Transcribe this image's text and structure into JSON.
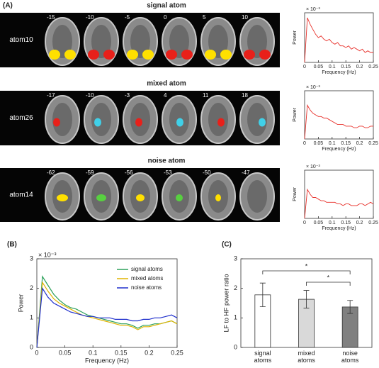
{
  "panel_a": {
    "label": "(A)",
    "rows": [
      {
        "title": "signal atom",
        "atom": "atom10",
        "slices": [
          -15,
          -10,
          -5,
          0,
          5,
          10
        ]
      },
      {
        "title": "mixed atom",
        "atom": "atom26",
        "slices": [
          -17,
          -10,
          -3,
          4,
          11,
          18
        ]
      },
      {
        "title": "noise atom",
        "atom": "atom14",
        "slices": [
          -62,
          -59,
          -56,
          -53,
          -50,
          -47
        ]
      }
    ]
  },
  "chart_data": [
    {
      "type": "line",
      "ylabel": "Power",
      "xlabel": "Frequency (Hz)",
      "exponent": "× 10⁻³",
      "color": "#e8302a",
      "x": [
        0,
        0.01,
        0.02,
        0.03,
        0.04,
        0.05,
        0.06,
        0.07,
        0.08,
        0.09,
        0.1,
        0.11,
        0.12,
        0.13,
        0.14,
        0.15,
        0.16,
        0.17,
        0.18,
        0.19,
        0.2,
        0.21,
        0.22,
        0.23,
        0.24,
        0.25
      ],
      "values": [
        0,
        2.7,
        2.3,
        2.0,
        1.7,
        1.5,
        1.6,
        1.4,
        1.3,
        1.4,
        1.2,
        1.1,
        1.2,
        1.0,
        1.0,
        0.9,
        1.0,
        0.8,
        0.9,
        0.8,
        0.7,
        0.8,
        0.6,
        0.7,
        0.6,
        0.6
      ],
      "xlim": [
        0,
        0.25
      ],
      "xticks": [
        0,
        0.05,
        0.1,
        0.15,
        0.2,
        0.25
      ],
      "ylim": [
        0,
        3
      ]
    },
    {
      "type": "line",
      "ylabel": "Power",
      "xlabel": "Frequency (Hz)",
      "exponent": "× 10⁻³",
      "color": "#e8302a",
      "x": [
        0,
        0.01,
        0.02,
        0.03,
        0.04,
        0.05,
        0.06,
        0.07,
        0.08,
        0.09,
        0.1,
        0.11,
        0.12,
        0.13,
        0.14,
        0.15,
        0.16,
        0.17,
        0.18,
        0.19,
        0.2,
        0.21,
        0.22,
        0.23,
        0.24,
        0.25
      ],
      "values": [
        0,
        2.1,
        1.8,
        1.6,
        1.5,
        1.4,
        1.4,
        1.3,
        1.3,
        1.2,
        1.1,
        1.0,
        0.9,
        0.9,
        0.9,
        0.8,
        0.8,
        0.8,
        0.7,
        0.7,
        0.8,
        0.8,
        0.7,
        0.7,
        0.8,
        0.8
      ],
      "xlim": [
        0,
        0.25
      ],
      "xticks": [
        0,
        0.05,
        0.1,
        0.15,
        0.2,
        0.25
      ],
      "ylim": [
        0,
        3
      ]
    },
    {
      "type": "line",
      "ylabel": "Power",
      "xlabel": "Frequency (Hz)",
      "exponent": "× 10⁻³",
      "color": "#e8302a",
      "x": [
        0,
        0.01,
        0.02,
        0.03,
        0.04,
        0.05,
        0.06,
        0.07,
        0.08,
        0.09,
        0.1,
        0.11,
        0.12,
        0.13,
        0.14,
        0.15,
        0.16,
        0.17,
        0.18,
        0.19,
        0.2,
        0.21,
        0.22,
        0.23,
        0.24,
        0.25
      ],
      "values": [
        0,
        1.8,
        1.5,
        1.3,
        1.3,
        1.2,
        1.1,
        1.1,
        1.0,
        1.0,
        1.0,
        1.0,
        0.9,
        0.9,
        0.8,
        0.9,
        0.9,
        0.8,
        0.8,
        0.8,
        0.9,
        0.9,
        0.8,
        0.9,
        1.0,
        0.9
      ],
      "xlim": [
        0,
        0.25
      ],
      "xticks": [
        0,
        0.05,
        0.1,
        0.15,
        0.2,
        0.25
      ],
      "ylim": [
        0,
        3
      ]
    },
    {
      "type": "line",
      "panel": "(B)",
      "ylabel": "Power",
      "xlabel": "Frequency (Hz)",
      "exponent": "× 10⁻³",
      "legend": "upper right",
      "x": [
        0,
        0.01,
        0.02,
        0.03,
        0.04,
        0.05,
        0.06,
        0.07,
        0.08,
        0.09,
        0.1,
        0.11,
        0.12,
        0.13,
        0.14,
        0.15,
        0.16,
        0.17,
        0.18,
        0.19,
        0.2,
        0.21,
        0.22,
        0.23,
        0.24,
        0.25
      ],
      "series": [
        {
          "name": "signal atoms",
          "color": "#2ca05a",
          "values": [
            0,
            2.4,
            2.1,
            1.8,
            1.6,
            1.45,
            1.35,
            1.3,
            1.2,
            1.1,
            1.05,
            1.0,
            0.95,
            0.9,
            0.85,
            0.8,
            0.8,
            0.75,
            0.65,
            0.75,
            0.75,
            0.8,
            0.8,
            0.85,
            0.9,
            0.8
          ]
        },
        {
          "name": "mixed atoms",
          "color": "#e0b400",
          "values": [
            0,
            2.2,
            1.9,
            1.65,
            1.5,
            1.4,
            1.3,
            1.2,
            1.1,
            1.05,
            1.0,
            0.95,
            0.9,
            0.85,
            0.8,
            0.75,
            0.75,
            0.7,
            0.6,
            0.7,
            0.7,
            0.75,
            0.8,
            0.85,
            0.9,
            0.8
          ]
        },
        {
          "name": "noise atoms",
          "color": "#1f2fcc",
          "values": [
            0,
            2.0,
            1.7,
            1.5,
            1.4,
            1.3,
            1.2,
            1.15,
            1.1,
            1.05,
            1.05,
            1.0,
            1.0,
            1.0,
            0.95,
            0.95,
            0.95,
            0.9,
            0.9,
            0.95,
            0.95,
            1.0,
            1.0,
            1.05,
            1.1,
            1.0
          ]
        }
      ],
      "xlim": [
        0,
        0.25
      ],
      "xticks": [
        0,
        0.05,
        0.1,
        0.15,
        0.2,
        0.25
      ],
      "ylim": [
        0,
        3
      ],
      "yticks": [
        0,
        1,
        2,
        3
      ]
    },
    {
      "type": "bar",
      "panel": "(C)",
      "ylabel": "LF to HF power ratio",
      "categories": [
        "signal atoms",
        "mixed atoms",
        "noise atoms"
      ],
      "values": [
        1.78,
        1.63,
        1.37
      ],
      "errors": [
        0.4,
        0.3,
        0.22
      ],
      "colors": [
        "#ffffff",
        "#d9d9d9",
        "#808080"
      ],
      "ylim": [
        0,
        3
      ],
      "yticks": [
        0,
        1,
        2,
        3
      ],
      "annotations": [
        "*",
        "*"
      ]
    }
  ]
}
